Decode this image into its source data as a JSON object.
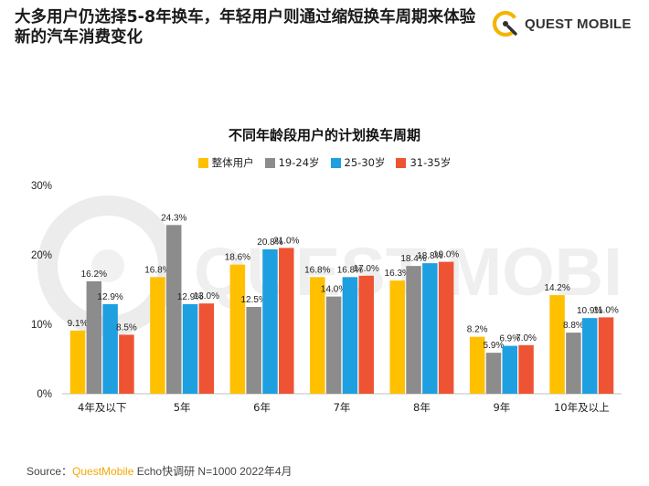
{
  "headline": "大多用户仍选择5-8年换车，年轻用户则通过缩短换车周期来体验新的汽车消费变化",
  "brand": {
    "name": "QUEST MOBILE",
    "icon": "quest-mobile-logo-icon",
    "color": "#f5b400"
  },
  "watermark": "QUEST MOBILE",
  "footer": {
    "prefix": "Source：",
    "highlight": "QuestMobile",
    "suffix": " Echo快调研 N=1000 2022年4月"
  },
  "chart_data": {
    "type": "bar",
    "title": "不同年龄段用户的计划换车周期",
    "categories": [
      "4年及以下",
      "5年",
      "6年",
      "7年",
      "8年",
      "9年",
      "10年及以上"
    ],
    "series": [
      {
        "name": "整体用户",
        "color": "#ffc000",
        "values": [
          9.1,
          16.8,
          18.6,
          16.8,
          16.3,
          8.2,
          14.2
        ]
      },
      {
        "name": "19-24岁",
        "color": "#8c8c8c",
        "values": [
          16.2,
          24.3,
          12.5,
          14.0,
          18.4,
          5.9,
          8.8
        ]
      },
      {
        "name": "25-30岁",
        "color": "#1e9fe0",
        "values": [
          12.9,
          12.9,
          20.8,
          16.8,
          18.8,
          6.9,
          10.9
        ]
      },
      {
        "name": "31-35岁",
        "color": "#ee5334",
        "values": [
          8.5,
          13.0,
          21.0,
          17.0,
          19.0,
          7.0,
          11.0
        ]
      }
    ],
    "yticks": [
      "0%",
      "10%",
      "20%",
      "30%"
    ],
    "ylim": [
      0,
      30
    ],
    "grid": false,
    "legend_position": "top-center"
  }
}
